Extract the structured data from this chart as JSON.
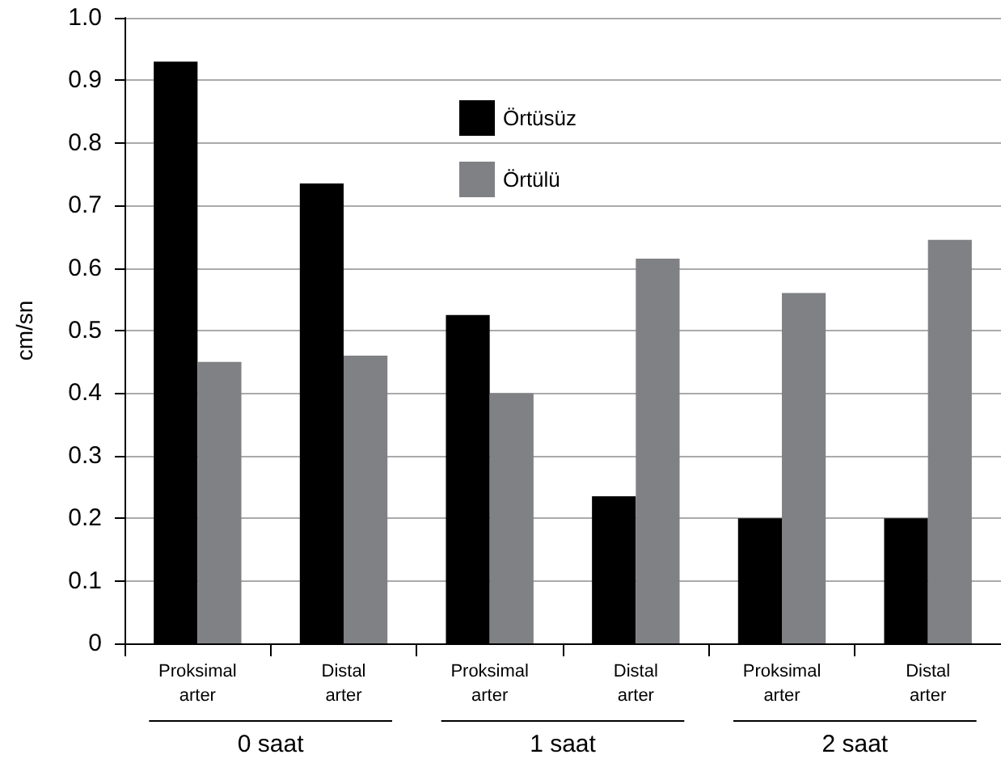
{
  "chart_data": {
    "type": "bar",
    "ylabel": "cm/sn",
    "categories": [
      "Proksimal arter",
      "Distal arter",
      "Proksimal arter",
      "Distal arter",
      "Proksimal arter",
      "Distal arter"
    ],
    "series": [
      {
        "name": "Örtüsüz",
        "color": "#000000",
        "values": [
          0.93,
          0.735,
          0.525,
          0.235,
          0.2,
          0.2
        ]
      },
      {
        "name": "Örtülü",
        "color": "#808184",
        "values": [
          0.45,
          0.46,
          0.4,
          0.615,
          0.56,
          0.645
        ]
      }
    ],
    "annotations": [
      "0 saat",
      "1 saat",
      "2 saat"
    ],
    "ylim": [
      0,
      1.0
    ],
    "yticks": [
      0,
      0.1,
      0.2,
      0.3,
      0.4,
      0.5,
      0.6,
      0.7,
      0.8,
      0.9,
      {
        "value": 1.0,
        "label": "1.0"
      }
    ],
    "grid": "y",
    "legend": "top"
  }
}
